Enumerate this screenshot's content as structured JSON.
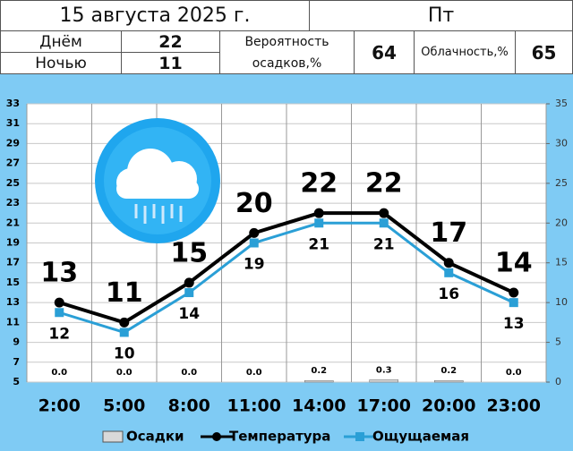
{
  "header": {
    "date": "15 августа 2025 г.",
    "weekday": "Пт",
    "day_label": "Днём",
    "day_value": "22",
    "night_label": "Ночью",
    "night_value": "11",
    "precip_label": "Вероятность осадков,%",
    "precip_value": "64",
    "cloud_label": "Облачность,%",
    "cloud_value": "65"
  },
  "chart_data": {
    "type": "line",
    "categories": [
      "2:00",
      "5:00",
      "8:00",
      "11:00",
      "14:00",
      "17:00",
      "20:00",
      "23:00"
    ],
    "series": [
      {
        "name": "Осадки",
        "type": "bar",
        "axis": "y2",
        "color": "#d9d9d9",
        "values": [
          0,
          0,
          0,
          0,
          0.2,
          0.3,
          0.2,
          0
        ],
        "value_labels": [
          "0.0",
          "0.0",
          "0.0",
          "0.0",
          "0.2",
          "0.3",
          "0.2",
          "0.0"
        ]
      },
      {
        "name": "Температура",
        "color": "#000000",
        "values": [
          13,
          11,
          15,
          20,
          22,
          22,
          17,
          14
        ]
      },
      {
        "name": "Ощущаемая",
        "color": "#2a9fd6",
        "values": [
          12,
          10,
          14,
          19,
          21,
          21,
          16,
          13
        ]
      }
    ],
    "ylim": [
      5,
      33
    ],
    "yticks": [
      5,
      7,
      9,
      11,
      13,
      15,
      17,
      19,
      21,
      23,
      25,
      27,
      29,
      31,
      33
    ],
    "y2lim": [
      0,
      35
    ],
    "y2ticks": [
      0,
      5,
      10,
      15,
      20,
      25,
      30,
      35
    ],
    "grid": true,
    "legend": "bottom"
  }
}
